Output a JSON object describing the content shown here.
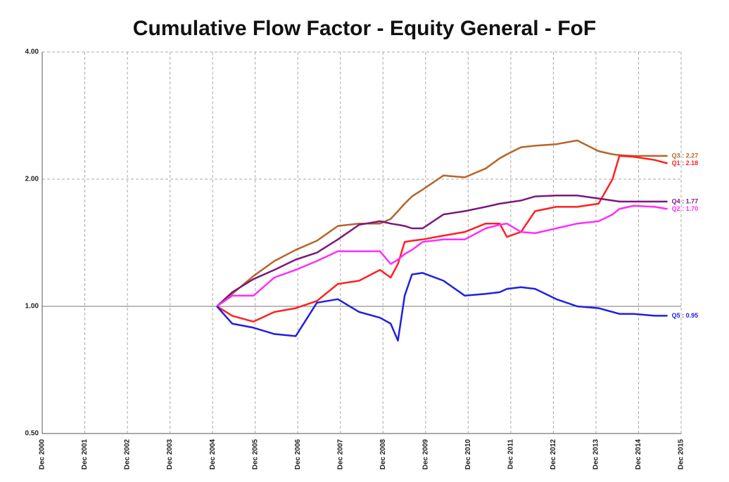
{
  "chart_data": {
    "type": "line",
    "title": "Cumulative Flow Factor - Equity General - FoF",
    "x": [
      2005.1,
      2005.46,
      2005.96,
      2006.45,
      2006.95,
      2007.45,
      2007.94,
      2008.44,
      2008.93,
      2009.18,
      2009.35,
      2009.51,
      2009.68,
      2009.93,
      2010.42,
      2010.92,
      2011.41,
      2011.74,
      2011.91,
      2012.24,
      2012.57,
      2013.07,
      2013.56,
      2014.06,
      2014.39,
      2014.55,
      2014.88,
      2015.38,
      2015.68
    ],
    "series": [
      {
        "name": "Q3",
        "end_label": "Q3 : 2.27",
        "color": "#b5652a",
        "values": [
          1.0,
          1.07,
          1.18,
          1.28,
          1.36,
          1.43,
          1.55,
          1.57,
          1.57,
          1.61,
          1.68,
          1.75,
          1.82,
          1.89,
          2.04,
          2.02,
          2.12,
          2.24,
          2.29,
          2.38,
          2.4,
          2.42,
          2.47,
          2.33,
          2.29,
          2.28,
          2.27,
          2.27,
          2.27
        ]
      },
      {
        "name": "Q1",
        "end_label": "Q1 : 2.18",
        "color": "#ff2020",
        "values": [
          1.0,
          0.95,
          0.92,
          0.97,
          0.99,
          1.03,
          1.13,
          1.15,
          1.22,
          1.17,
          1.26,
          1.42,
          1.43,
          1.44,
          1.47,
          1.5,
          1.57,
          1.57,
          1.46,
          1.5,
          1.68,
          1.72,
          1.72,
          1.75,
          2.0,
          2.27,
          2.26,
          2.22,
          2.18
        ]
      },
      {
        "name": "Q4",
        "end_label": "Q4 : 1.77",
        "color": "#7a1a7a",
        "values": [
          1.0,
          1.08,
          1.16,
          1.22,
          1.29,
          1.34,
          1.44,
          1.56,
          1.59,
          1.57,
          1.56,
          1.55,
          1.53,
          1.53,
          1.65,
          1.68,
          1.72,
          1.75,
          1.76,
          1.78,
          1.82,
          1.83,
          1.83,
          1.8,
          1.78,
          1.77,
          1.77,
          1.77,
          1.77
        ]
      },
      {
        "name": "Q2",
        "end_label": "Q2 : 1.70",
        "color": "#ff2cff",
        "values": [
          1.0,
          1.06,
          1.06,
          1.17,
          1.22,
          1.28,
          1.35,
          1.35,
          1.35,
          1.26,
          1.29,
          1.33,
          1.36,
          1.42,
          1.44,
          1.44,
          1.53,
          1.56,
          1.57,
          1.5,
          1.49,
          1.53,
          1.57,
          1.59,
          1.65,
          1.7,
          1.73,
          1.72,
          1.7
        ]
      },
      {
        "name": "Q5",
        "end_label": "Q5 : 0.95",
        "color": "#2020e0",
        "values": [
          1.0,
          0.91,
          0.89,
          0.86,
          0.85,
          1.02,
          1.04,
          0.97,
          0.94,
          0.91,
          0.83,
          1.06,
          1.19,
          1.2,
          1.15,
          1.06,
          1.07,
          1.08,
          1.1,
          1.11,
          1.1,
          1.04,
          1.0,
          0.99,
          0.97,
          0.96,
          0.96,
          0.95,
          0.95
        ]
      }
    ],
    "xlim": [
      2001,
      2016
    ],
    "xticks": [
      {
        "value": 2001,
        "label": "Dec 2000"
      },
      {
        "value": 2002,
        "label": "Dec 2001"
      },
      {
        "value": 2003,
        "label": "Dec 2002"
      },
      {
        "value": 2004,
        "label": "Dec 2003"
      },
      {
        "value": 2005,
        "label": "Dec 2004"
      },
      {
        "value": 2006,
        "label": "Dec 2005"
      },
      {
        "value": 2007,
        "label": "Dec 2006"
      },
      {
        "value": 2008,
        "label": "Dec 2007"
      },
      {
        "value": 2009,
        "label": "Dec 2008"
      },
      {
        "value": 2010,
        "label": "Dec 2009"
      },
      {
        "value": 2011,
        "label": "Dec 2010"
      },
      {
        "value": 2012,
        "label": "Dec 2011"
      },
      {
        "value": 2013,
        "label": "Dec 2012"
      },
      {
        "value": 2014,
        "label": "Dec 2013"
      },
      {
        "value": 2015,
        "label": "Dec 2014"
      },
      {
        "value": 2016,
        "label": "Dec 2015"
      }
    ],
    "ylim": [
      0.5,
      4
    ],
    "yticks": [
      {
        "value": 0.5,
        "label": "0.50"
      },
      {
        "value": 1,
        "label": "1.00"
      },
      {
        "value": 2,
        "label": "2.00"
      },
      {
        "value": 4,
        "label": "4.00"
      }
    ],
    "y_log": true,
    "grid": true,
    "baseline": 1
  }
}
